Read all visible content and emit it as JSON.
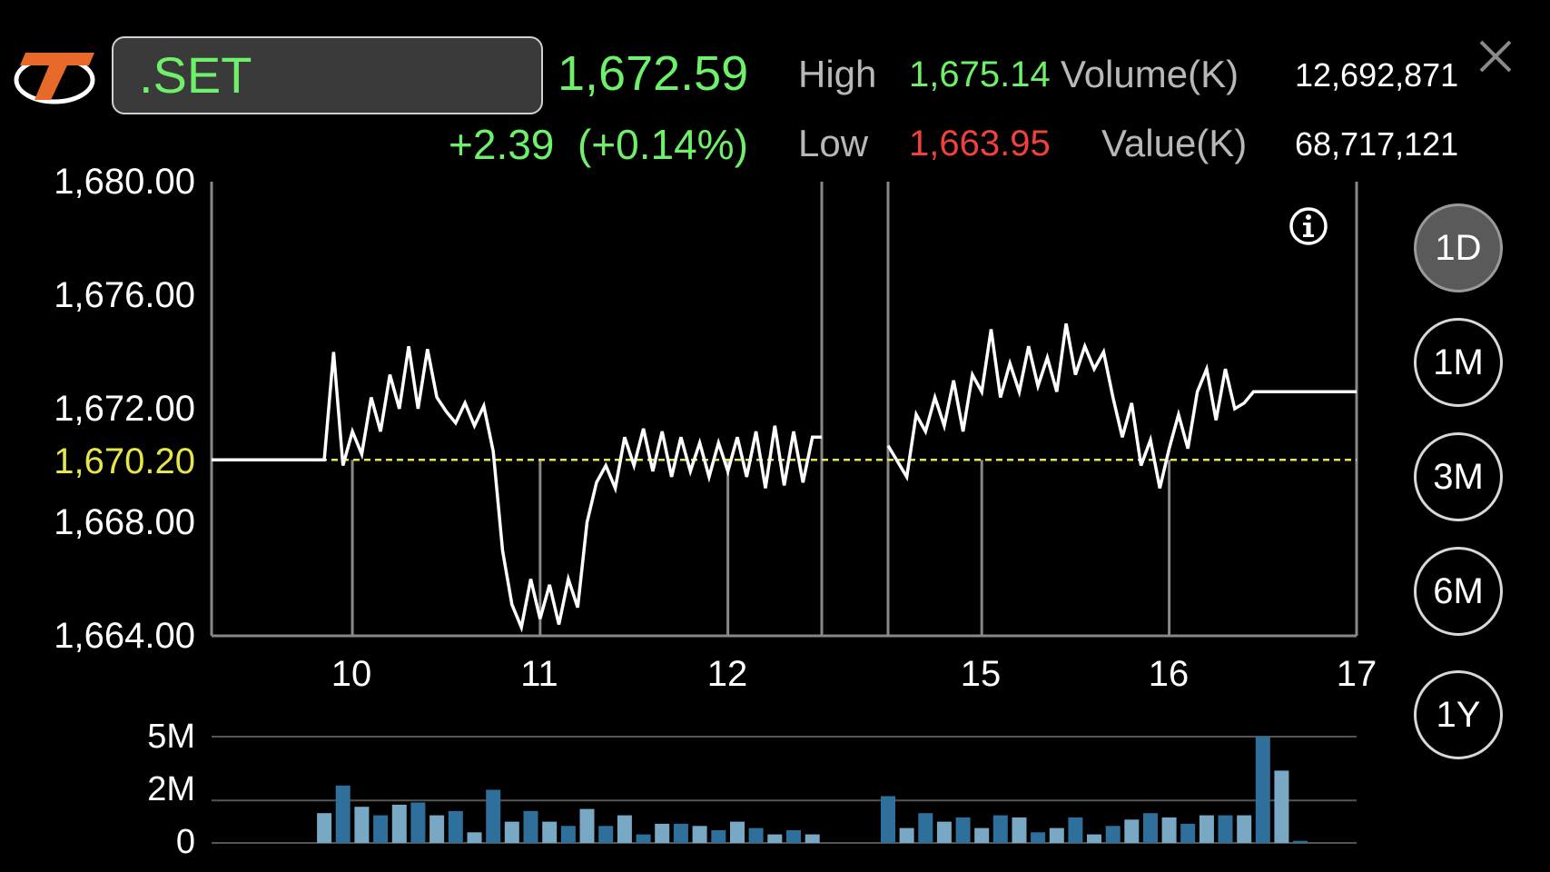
{
  "header": {
    "symbol": ".SET",
    "last": "1,672.59",
    "change": "+2.39",
    "change_pct": "(+0.14%)",
    "high_label": "High",
    "high": "1,675.14",
    "low_label": "Low",
    "low": "1,663.95",
    "volume_label": "Volume(K)",
    "volume": "12,692,871",
    "value_label": "Value(K)",
    "value": "68,717,121"
  },
  "colors": {
    "up": "#6ef06a",
    "down": "#f0413a",
    "reference": "#e6e64a",
    "price_line": "#ffffff",
    "volume_dark": "#2f6f9b",
    "volume_light": "#79a8c4"
  },
  "period_buttons": [
    {
      "label": "1D",
      "active": true
    },
    {
      "label": "1M",
      "active": false
    },
    {
      "label": "3M",
      "active": false
    },
    {
      "label": "6M",
      "active": false
    },
    {
      "label": "1Y",
      "active": false
    }
  ],
  "chart_data": [
    {
      "type": "line",
      "y_ticks": [
        "1,680.00",
        "1,676.00",
        "1,672.00",
        "1,668.00",
        "1,664.00"
      ],
      "ylim": [
        1664,
        1680
      ],
      "reference_label": "1,670.20",
      "reference_value": 1670.2,
      "x_ticks": [
        "10",
        "11",
        "12",
        "15",
        "16",
        "17"
      ],
      "x_tick_times": [
        10,
        11,
        12,
        14.5,
        15.5,
        16.5
      ],
      "xlim": [
        9.25,
        16.5
      ],
      "sessions": [
        {
          "name": "morning",
          "x": [
            9.25,
            9.85,
            9.9,
            9.95,
            10.0,
            10.05,
            10.1,
            10.15,
            10.2,
            10.25,
            10.3,
            10.35,
            10.4,
            10.45,
            10.5,
            10.55,
            10.6,
            10.65,
            10.7,
            10.75,
            10.8,
            10.85,
            10.9,
            10.95,
            11.0,
            11.05,
            11.1,
            11.15,
            11.2,
            11.25,
            11.3,
            11.35,
            11.4,
            11.45,
            11.5,
            11.55,
            11.6,
            11.65,
            11.7,
            11.75,
            11.8,
            11.85,
            11.9,
            11.95,
            12.0,
            12.05,
            12.1,
            12.15,
            12.2,
            12.25,
            12.3,
            12.35,
            12.4,
            12.45,
            12.5
          ],
          "y": [
            1670.2,
            1670.2,
            1674.0,
            1670.0,
            1671.2,
            1670.4,
            1672.4,
            1671.2,
            1673.2,
            1672.0,
            1674.2,
            1672.0,
            1674.1,
            1672.4,
            1671.9,
            1671.5,
            1672.2,
            1671.4,
            1672.1,
            1670.5,
            1667.0,
            1665.1,
            1664.3,
            1666.0,
            1664.6,
            1665.8,
            1664.4,
            1666.0,
            1665.0,
            1668.0,
            1669.4,
            1670.0,
            1669.2,
            1671.0,
            1670.0,
            1671.3,
            1669.8,
            1671.2,
            1669.6,
            1671.0,
            1669.8,
            1670.8,
            1669.6,
            1670.8,
            1669.8,
            1671.0,
            1669.6,
            1671.2,
            1669.2,
            1671.4,
            1669.3,
            1671.2,
            1669.4,
            1671.0,
            1671.0
          ]
        },
        {
          "name": "afternoon",
          "x": [
            14.0,
            14.1,
            14.15,
            14.2,
            14.25,
            14.3,
            14.35,
            14.4,
            14.45,
            14.5,
            14.55,
            14.6,
            14.65,
            14.7,
            14.75,
            14.8,
            14.85,
            14.9,
            14.95,
            15.0,
            15.05,
            15.1,
            15.15,
            15.2,
            15.25,
            15.3,
            15.35,
            15.4,
            15.45,
            15.5,
            15.55,
            15.6,
            15.65,
            15.7,
            15.75,
            15.8,
            15.85,
            15.9,
            15.95,
            16.0,
            16.1,
            16.5
          ],
          "y": [
            1670.7,
            1669.6,
            1671.8,
            1671.2,
            1672.4,
            1671.4,
            1673.0,
            1671.2,
            1673.2,
            1672.6,
            1674.8,
            1672.4,
            1673.6,
            1672.6,
            1674.2,
            1672.8,
            1673.8,
            1672.6,
            1675.0,
            1673.2,
            1674.2,
            1673.4,
            1674.0,
            1672.4,
            1671.0,
            1672.2,
            1670.0,
            1670.9,
            1669.2,
            1670.6,
            1671.8,
            1670.6,
            1672.6,
            1673.4,
            1671.6,
            1673.4,
            1672.0,
            1672.2,
            1672.6,
            1672.6,
            1672.6,
            1672.6
          ]
        }
      ]
    },
    {
      "type": "bar",
      "y_ticks": [
        "5M",
        "2M",
        "0"
      ],
      "ylim": [
        0,
        5
      ],
      "x": [
        9.85,
        9.95,
        10.05,
        10.15,
        10.25,
        10.35,
        10.45,
        10.55,
        10.65,
        10.75,
        10.85,
        10.95,
        11.05,
        11.15,
        11.25,
        11.35,
        11.45,
        11.55,
        11.65,
        11.75,
        11.85,
        11.95,
        12.05,
        12.15,
        12.25,
        12.35,
        12.45,
        14.0,
        14.1,
        14.2,
        14.3,
        14.4,
        14.5,
        14.6,
        14.7,
        14.8,
        14.9,
        15.0,
        15.1,
        15.2,
        15.3,
        15.4,
        15.5,
        15.6,
        15.7,
        15.8,
        15.9,
        16.0,
        16.1,
        16.2
      ],
      "values": [
        1.4,
        2.7,
        1.7,
        1.3,
        1.8,
        1.9,
        1.3,
        1.5,
        0.5,
        2.5,
        1.0,
        1.5,
        1.0,
        0.8,
        1.6,
        0.8,
        1.3,
        0.4,
        0.9,
        0.9,
        0.8,
        0.6,
        1.0,
        0.7,
        0.4,
        0.6,
        0.4,
        2.2,
        0.7,
        1.4,
        1.0,
        1.2,
        0.7,
        1.3,
        1.2,
        0.5,
        0.7,
        1.2,
        0.4,
        0.8,
        1.1,
        1.4,
        1.2,
        0.9,
        1.3,
        1.3,
        1.3,
        5.0,
        3.4,
        0.1
      ]
    }
  ]
}
